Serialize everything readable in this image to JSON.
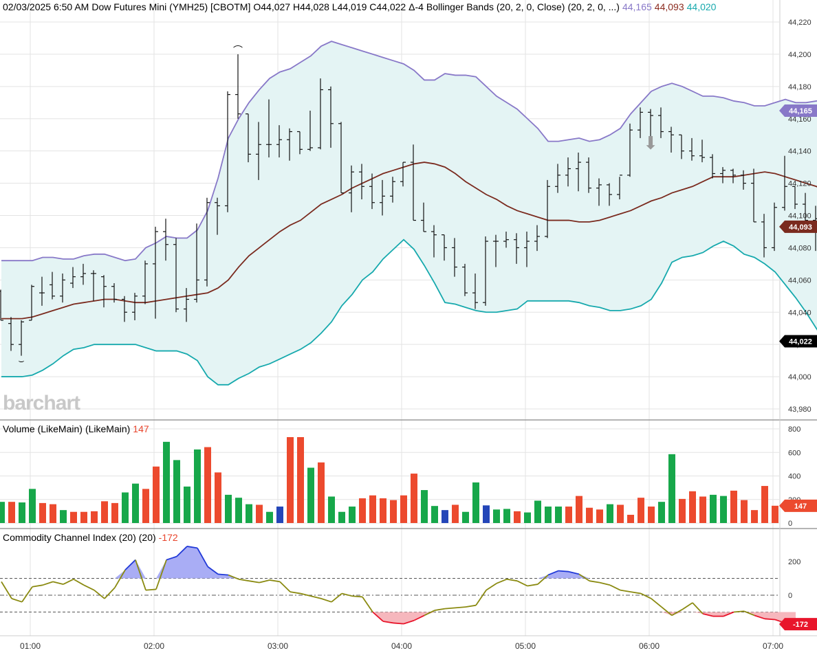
{
  "header": {
    "date": "02/03/2025 6:50 AM",
    "instrument": "Dow Futures Mini (YMH25) [CBOTM]",
    "ohlc": "O44,027 H44,028 L44,019 C44,022 Δ-4",
    "indicator": "Bollinger Bands (20, 2, 0, Close)",
    "indicator_params": "(20, 2, 0, ...)",
    "upper_value": "44,165",
    "middle_value": "44,093",
    "lower_value": "44,020"
  },
  "watermark": "barchart",
  "volume_panel": {
    "title": "Volume (LikeMain)",
    "params": "(LikeMain)",
    "value": "147"
  },
  "cci_panel": {
    "title": "Commodity Channel Index (20)",
    "params": "(20)",
    "value": "-172"
  },
  "colors": {
    "upper_band": "#8878c8",
    "middle_band": "#7a2a1e",
    "lower_band": "#16a9ad",
    "band_fill": "#e4f4f4",
    "vol_up": "#17a74a",
    "vol_down": "#ec4a2e",
    "vol_flat": "#2446b8",
    "cci_line": "#8a8a10",
    "cci_over": "#2039d8",
    "cci_under": "#e8152b",
    "cci_over_fill": "#a9adf5",
    "cci_under_fill": "#f6b7bd"
  },
  "chart_data": [
    {
      "type": "ohlc",
      "title": "Dow Futures Mini (YMH25) [CBOTM]",
      "x_ticks": [
        "01:00",
        "02:00",
        "03:00",
        "04:00",
        "05:00",
        "06:00",
        "07:00"
      ],
      "ylim": [
        43975,
        44228
      ],
      "y_ticks": [
        "43,980",
        "44,000",
        "44,020",
        "44,040",
        "44,060",
        "44,080",
        "44,100",
        "44,120",
        "44,140",
        "44,160",
        "44,180",
        "44,200",
        "44,220"
      ],
      "price_labels": {
        "upper": "44,165",
        "middle": "44,093",
        "close": "44,022"
      },
      "marker_text": {
        "high": "⌒",
        "low": "⌣",
        "arrow": "⬇"
      },
      "bars": [
        [
          44053,
          44054,
          44035,
          44035
        ],
        [
          44033,
          44037,
          44016,
          44020
        ],
        [
          44020,
          44035,
          44013,
          44034
        ],
        [
          44035,
          44057,
          44035,
          44056
        ],
        [
          44052,
          44062,
          44044,
          44052
        ],
        [
          44057,
          44065,
          44048,
          44050
        ],
        [
          44050,
          44064,
          44046,
          44060
        ],
        [
          44058,
          44068,
          44055,
          44062
        ],
        [
          44062,
          44070,
          44057,
          44064
        ],
        [
          44064,
          44066,
          44047,
          44064
        ],
        [
          44062,
          44063,
          44043,
          44056
        ],
        [
          44056,
          44058,
          44046,
          44048
        ],
        [
          44048,
          44050,
          44034,
          44040
        ],
        [
          44040,
          44052,
          44035,
          44050
        ],
        [
          44050,
          44072,
          44045,
          44070
        ],
        [
          44070,
          44093,
          44036,
          44090
        ],
        [
          44090,
          44098,
          44072,
          44082
        ],
        [
          44082,
          44086,
          44040,
          44042
        ],
        [
          44042,
          44055,
          44034,
          44048
        ],
        [
          44048,
          44095,
          44046,
          44060
        ],
        [
          44060,
          44111,
          44056,
          44108
        ],
        [
          44108,
          44111,
          44088,
          44106
        ],
        [
          44106,
          44177,
          44102,
          44175
        ],
        [
          44175,
          44200,
          44160,
          44163
        ],
        [
          44163,
          44163,
          44133,
          44138
        ],
        [
          44138,
          44158,
          44122,
          44144
        ],
        [
          44144,
          44172,
          44136,
          44144
        ],
        [
          44144,
          44156,
          44136,
          44147
        ],
        [
          44147,
          44154,
          44134,
          44152
        ],
        [
          44152,
          44152,
          44138,
          44141
        ],
        [
          44141,
          44165,
          44140,
          44142
        ],
        [
          44142,
          44185,
          44141,
          44178
        ],
        [
          44178,
          44180,
          44142,
          44157
        ],
        [
          44157,
          44158,
          44114,
          44114
        ],
        [
          44114,
          44131,
          44102,
          44127
        ],
        [
          44127,
          44132,
          44110,
          44118
        ],
        [
          44118,
          44126,
          44104,
          44108
        ],
        [
          44108,
          44122,
          44100,
          44112
        ],
        [
          44112,
          44124,
          44108,
          44121
        ],
        [
          44121,
          44133,
          44118,
          44133
        ],
        [
          44133,
          44144,
          44097,
          44097
        ],
        [
          44097,
          44108,
          44090,
          44090
        ],
        [
          44090,
          44094,
          44074,
          44088
        ],
        [
          44088,
          44088,
          44072,
          44080
        ],
        [
          44080,
          44086,
          44062,
          44068
        ],
        [
          44068,
          44070,
          44050,
          44052
        ],
        [
          44052,
          44064,
          44042,
          44046
        ],
        [
          44046,
          44087,
          44044,
          44084
        ],
        [
          44084,
          44088,
          44068,
          44084
        ],
        [
          44084,
          44090,
          44080,
          44085
        ],
        [
          44085,
          44089,
          44070,
          44080
        ],
        [
          44080,
          44090,
          44068,
          44084
        ],
        [
          44084,
          44094,
          44078,
          44087
        ],
        [
          44087,
          44122,
          44086,
          44118
        ],
        [
          44118,
          44132,
          44114,
          44125
        ],
        [
          44125,
          44136,
          44118,
          44129
        ],
        [
          44129,
          44139,
          44115,
          44133
        ],
        [
          44133,
          44136,
          44114,
          44117
        ],
        [
          44117,
          44123,
          44106,
          44119
        ],
        [
          44119,
          44120,
          44106,
          44113
        ],
        [
          44113,
          44124,
          44110,
          44125
        ],
        [
          44125,
          44157,
          44124,
          44153
        ],
        [
          44153,
          44167,
          44148,
          44164
        ],
        [
          44164,
          44166,
          44149,
          44162
        ],
        [
          44162,
          44167,
          44148,
          44152
        ],
        [
          44152,
          44155,
          44139,
          44150
        ],
        [
          44150,
          44150,
          44135,
          44140
        ],
        [
          44140,
          44148,
          44134,
          44137
        ],
        [
          44137,
          44147,
          44133,
          44136
        ],
        [
          44136,
          44138,
          44123,
          44126
        ],
        [
          44126,
          44130,
          44120,
          44128
        ],
        [
          44128,
          44129,
          44120,
          44125
        ],
        [
          44125,
          44128,
          44116,
          44120
        ],
        [
          44120,
          44129,
          44096,
          44096
        ],
        [
          44096,
          44101,
          44074,
          44080
        ],
        [
          44080,
          44108,
          44078,
          44105
        ],
        [
          44105,
          44137,
          44103,
          44118
        ],
        [
          44118,
          44118,
          44104,
          44107
        ],
        [
          44107,
          44114,
          44096,
          44097
        ],
        [
          44097,
          44106,
          44078,
          44098
        ],
        [
          44098,
          44104,
          44082,
          44096
        ],
        [
          44096,
          44101,
          44078,
          44093
        ],
        [
          44093,
          44110,
          44084,
          44098
        ],
        [
          44098,
          44098,
          44085,
          44086
        ],
        [
          44086,
          44089,
          44075,
          44073
        ],
        [
          44073,
          44074,
          44054,
          44063
        ],
        [
          44063,
          44065,
          44040,
          44044
        ],
        [
          44044,
          44050,
          44033,
          44040
        ],
        [
          44040,
          44045,
          44018,
          44027
        ],
        [
          44027,
          44028,
          44019,
          44022
        ]
      ],
      "upper_band": [
        44072,
        44072,
        44072,
        44072,
        44074,
        44074,
        44073,
        44073,
        44075,
        44076,
        44076,
        44074,
        44072,
        44073,
        44080,
        44083,
        44087,
        44086,
        44086,
        44091,
        44103,
        44123,
        44148,
        44160,
        44170,
        44178,
        44185,
        44189,
        44191,
        44195,
        44199,
        44205,
        44208,
        44206,
        44204,
        44202,
        44200,
        44198,
        44196,
        44194,
        44190,
        44184,
        44184,
        44188,
        44187,
        44187,
        44186,
        44180,
        44174,
        44170,
        44166,
        44160,
        44154,
        44146,
        44146,
        44147,
        44148,
        44146,
        44147,
        44150,
        44154,
        44163,
        44170,
        44177,
        44180,
        44182,
        44180,
        44177,
        44174,
        44174,
        44173,
        44171,
        44170,
        44168,
        44168,
        44170,
        44172,
        44170,
        44170,
        44171,
        44173,
        44175,
        44175,
        44174,
        44170,
        44165
      ],
      "middle_band": [
        44036,
        44036,
        44036,
        44037,
        44039,
        44041,
        44043,
        44045,
        44046,
        44047,
        44048,
        44048,
        44047,
        44046,
        44046,
        44047,
        44048,
        44049,
        44050,
        44051,
        44052,
        44055,
        44060,
        44068,
        44075,
        44080,
        44085,
        44090,
        44094,
        44097,
        44102,
        44107,
        44110,
        44113,
        44117,
        44120,
        44123,
        44126,
        44128,
        44130,
        44132,
        44133,
        44132,
        44130,
        44126,
        44121,
        44117,
        44113,
        44110,
        44106,
        44103,
        44101,
        44099,
        44097,
        44097,
        44097,
        44096,
        44096,
        44097,
        44099,
        44101,
        44103,
        44106,
        44109,
        44111,
        44114,
        44116,
        44118,
        44121,
        44124,
        44124,
        44124,
        44125,
        44126,
        44127,
        44126,
        44124,
        44122,
        44120,
        44118,
        44115,
        44112,
        44108,
        44102,
        44095,
        44093
      ],
      "lower_band": [
        44000,
        44000,
        44000,
        44001,
        44004,
        44008,
        44013,
        44017,
        44018,
        44020,
        44020,
        44020,
        44020,
        44020,
        44018,
        44016,
        44016,
        44016,
        44014,
        44010,
        44000,
        43995,
        43995,
        43999,
        44002,
        44006,
        44008,
        44011,
        44014,
        44017,
        44021,
        44027,
        44034,
        44044,
        44051,
        44060,
        44065,
        44073,
        44079,
        44085,
        44079,
        44069,
        44058,
        44046,
        44045,
        44043,
        44041,
        44040,
        44040,
        44041,
        44042,
        44047,
        44047,
        44047,
        44047,
        44047,
        44046,
        44044,
        44043,
        44041,
        44041,
        44042,
        44044,
        44048,
        44058,
        44071,
        44074,
        44075,
        44077,
        44081,
        44084,
        44081,
        44076,
        44074,
        44070,
        44065,
        44057,
        44049,
        44040,
        44030,
        44020,
        44020,
        44020,
        44020,
        44020,
        44020
      ],
      "bands_start_index": 0
    },
    {
      "type": "bar",
      "title": "Volume (LikeMain)",
      "ylim": [
        0,
        800
      ],
      "y_ticks": [
        "0",
        "200",
        "400",
        "600",
        "800"
      ],
      "last_value": "147",
      "values": [
        180,
        180,
        175,
        290,
        170,
        160,
        110,
        95,
        95,
        100,
        185,
        170,
        260,
        335,
        290,
        480,
        690,
        535,
        310,
        625,
        645,
        430,
        240,
        215,
        160,
        155,
        95,
        140,
        730,
        730,
        470,
        515,
        225,
        95,
        140,
        210,
        235,
        210,
        195,
        235,
        420,
        280,
        145,
        110,
        155,
        95,
        345,
        150,
        115,
        120,
        100,
        90,
        190,
        140,
        140,
        140,
        230,
        130,
        115,
        160,
        155,
        70,
        215,
        140,
        180,
        585,
        205,
        270,
        225,
        240,
        230,
        275,
        195,
        110,
        315,
        147
      ],
      "colors": [
        "up",
        "down",
        "up",
        "up",
        "down",
        "down",
        "up",
        "down",
        "down",
        "down",
        "down",
        "down",
        "up",
        "up",
        "down",
        "down",
        "up",
        "up",
        "up",
        "up",
        "down",
        "down",
        "up",
        "up",
        "up",
        "down",
        "up",
        "flat",
        "down",
        "down",
        "up",
        "down",
        "up",
        "up",
        "up",
        "down",
        "down",
        "down",
        "down",
        "down",
        "down",
        "up",
        "up",
        "flat",
        "down",
        "up",
        "up",
        "flat",
        "up",
        "up",
        "down",
        "up",
        "up",
        "up",
        "up",
        "down",
        "down",
        "down",
        "down",
        "up",
        "down",
        "down",
        "down",
        "down",
        "up",
        "up",
        "down",
        "down",
        "down",
        "up",
        "up",
        "down",
        "down",
        "down",
        "down",
        "down"
      ]
    },
    {
      "type": "line",
      "title": "Commodity Channel Index (20)",
      "ylim": [
        -250,
        300
      ],
      "y_ticks": [
        "0",
        "200"
      ],
      "reference_lines": [
        100,
        0,
        -100
      ],
      "last_value": "-172",
      "values": [
        80,
        -20,
        -40,
        50,
        60,
        80,
        65,
        95,
        60,
        30,
        -20,
        45,
        150,
        210,
        30,
        35,
        210,
        230,
        290,
        280,
        170,
        125,
        120,
        95,
        85,
        75,
        90,
        80,
        20,
        10,
        -5,
        -20,
        -40,
        10,
        -5,
        -10,
        -100,
        -155,
        -165,
        -170,
        -150,
        -120,
        -90,
        -80,
        -75,
        -70,
        -60,
        30,
        70,
        95,
        85,
        55,
        65,
        120,
        145,
        140,
        125,
        85,
        75,
        60,
        30,
        20,
        10,
        -20,
        -70,
        -120,
        -85,
        -45,
        -110,
        -125,
        -125,
        -100,
        -95,
        -120,
        -140,
        -145,
        -165,
        -172
      ],
      "x_start": 0
    }
  ]
}
